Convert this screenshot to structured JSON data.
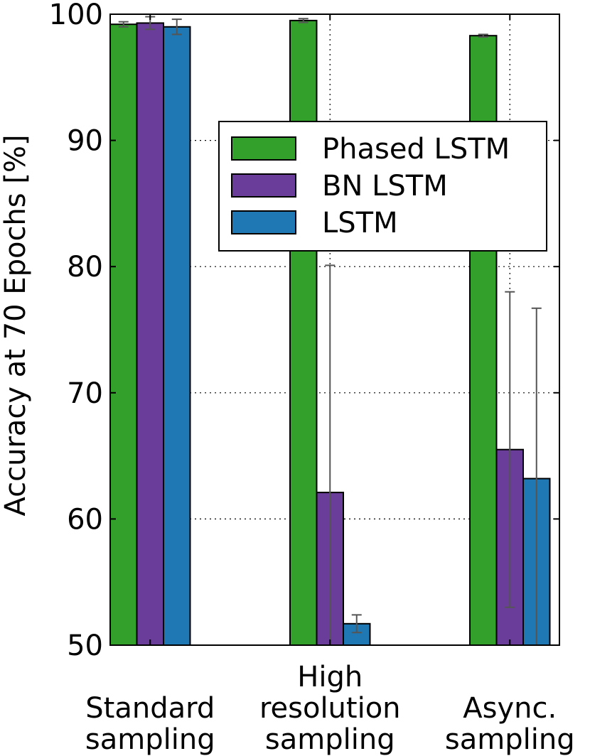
{
  "chart_data": {
    "type": "bar",
    "title": "",
    "xlabel": "",
    "ylabel": "Accuracy at 70 Epochs [%]",
    "ylim": [
      50,
      100
    ],
    "yticks": [
      "50",
      "60",
      "70",
      "80",
      "90",
      "100"
    ],
    "grid": true,
    "legend_position": "upper-right",
    "categories": [
      [
        "Standard",
        "sampling"
      ],
      [
        "High",
        "resolution",
        "sampling"
      ],
      [
        "Async.",
        "sampling"
      ]
    ],
    "series": [
      {
        "name": "Phased LSTM",
        "color": "#33a02c",
        "values": [
          99.2,
          99.5,
          98.3
        ],
        "errors": [
          0.2,
          0.15,
          0.1
        ]
      },
      {
        "name": "BN LSTM",
        "color": "#6a3d9a",
        "values": [
          99.3,
          62.1,
          65.5
        ],
        "errors": [
          0.5,
          18.0,
          12.5
        ]
      },
      {
        "name": "LSTM",
        "color": "#1f78b4",
        "values": [
          99.0,
          51.7,
          63.2
        ],
        "errors": [
          0.6,
          0.7,
          13.5
        ]
      }
    ]
  }
}
